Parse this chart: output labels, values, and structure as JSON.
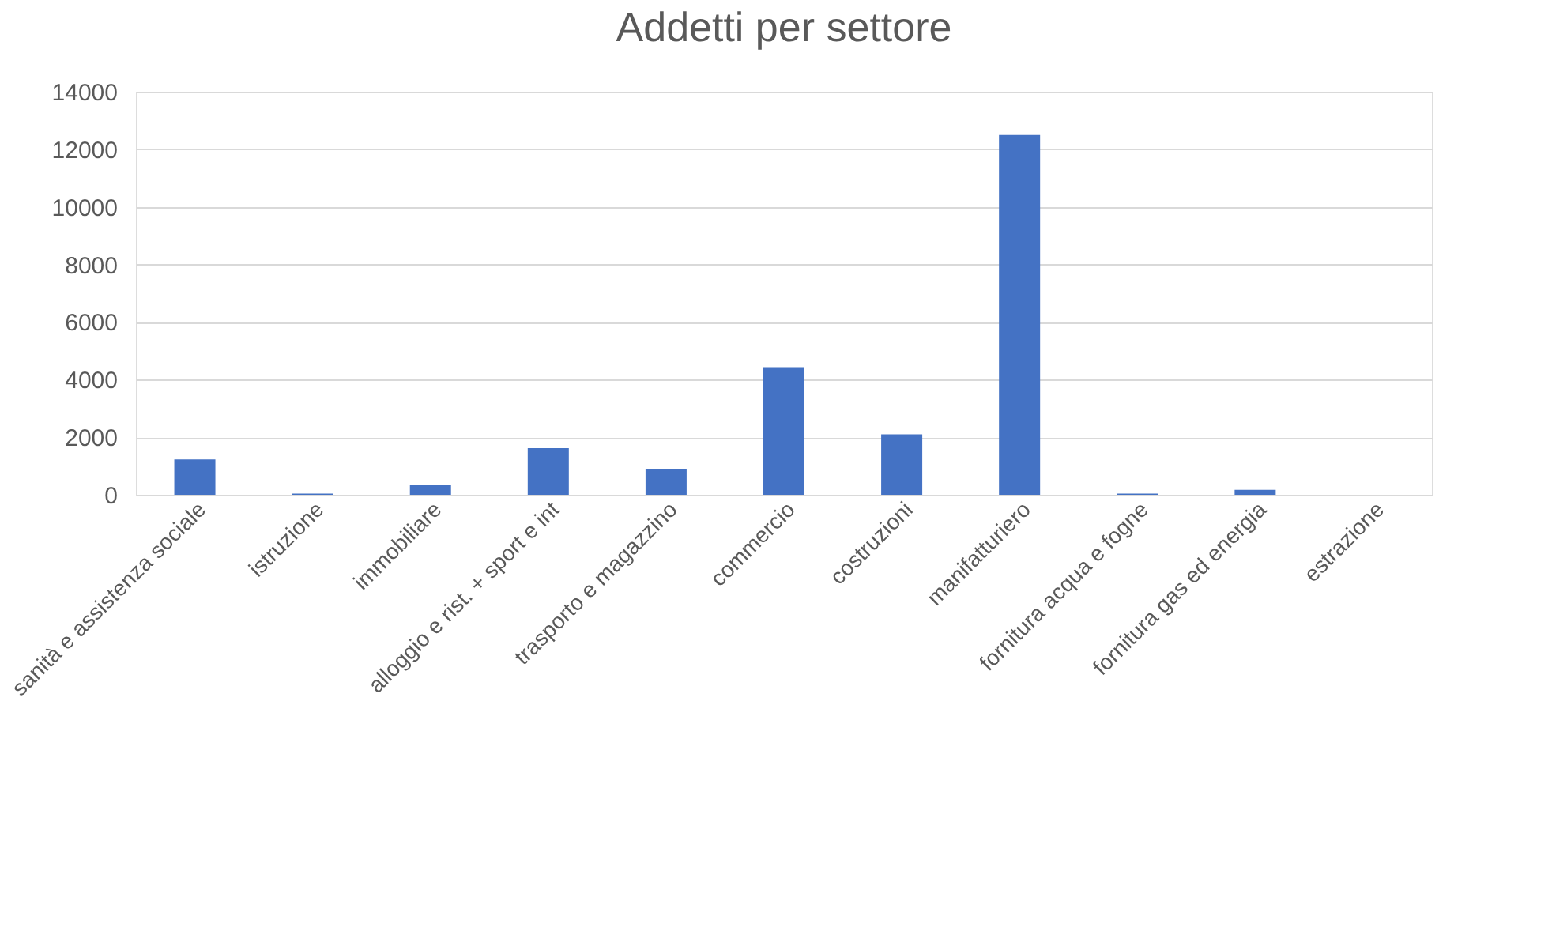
{
  "chart_data": {
    "type": "bar",
    "title": "Addetti per settore",
    "categories": [
      "sanità e assistenza sociale",
      "istruzione",
      "immobiliare",
      "alloggio e rist. + sport e int",
      "trasporto e magazzino",
      "commercio",
      "costruzioni",
      "manifatturiero",
      "fornitura acqua e fogne",
      "fornitura gas ed energia",
      "estrazione"
    ],
    "values": [
      1230,
      40,
      330,
      1620,
      900,
      4430,
      2100,
      12500,
      40,
      170,
      0
    ],
    "color": "#4472c4",
    "ylim": [
      0,
      14000
    ],
    "yticks": [
      0,
      2000,
      4000,
      6000,
      8000,
      10000,
      12000,
      14000
    ],
    "grid": "y"
  }
}
